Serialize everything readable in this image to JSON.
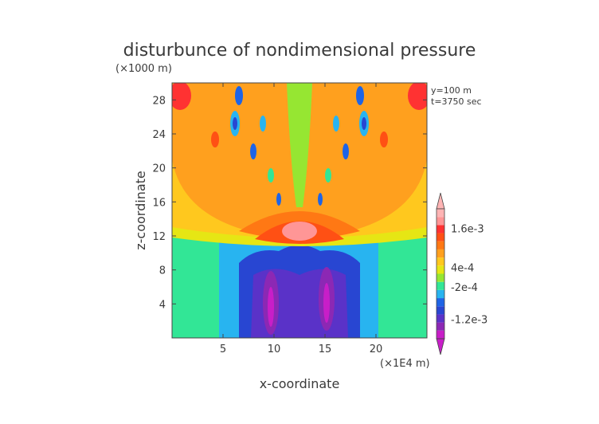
{
  "chart_data": {
    "type": "heatmap",
    "title": "disturbunce of nondimensional pressure",
    "xlabel": "x-coordinate",
    "ylabel": "z-coordinate",
    "x_unit": "(×1E4 m)",
    "y_unit": "(×1000 m)",
    "xlim": [
      0,
      25
    ],
    "ylim": [
      0,
      30
    ],
    "x_ticks": [
      "5",
      "10",
      "15",
      "20"
    ],
    "x_tick_values": [
      5,
      10,
      15,
      20
    ],
    "y_ticks": [
      "4",
      "8",
      "12",
      "16",
      "20",
      "24",
      "28"
    ],
    "y_tick_values": [
      4,
      8,
      12,
      16,
      20,
      24,
      28
    ],
    "annotations": [
      "y=100 m",
      "t=3750 sec"
    ],
    "colorbar": {
      "levels_colors": [
        "#c81ec8",
        "#8c28b4",
        "#5a32c8",
        "#2846d2",
        "#1e64e6",
        "#28b4f0",
        "#32e696",
        "#96e632",
        "#e6e614",
        "#ffc81e",
        "#ffa01e",
        "#ff7814",
        "#ff5014",
        "#ff3232",
        "#ff9696",
        "#ffb4b4"
      ],
      "tick_labels": [
        "1.6e-3",
        "4e-4",
        "-2e-4",
        "-1.2e-3"
      ],
      "tick_values": [
        0.0016,
        0.0004,
        -0.0002,
        -0.0012
      ],
      "extend": "both"
    },
    "grid": false
  }
}
